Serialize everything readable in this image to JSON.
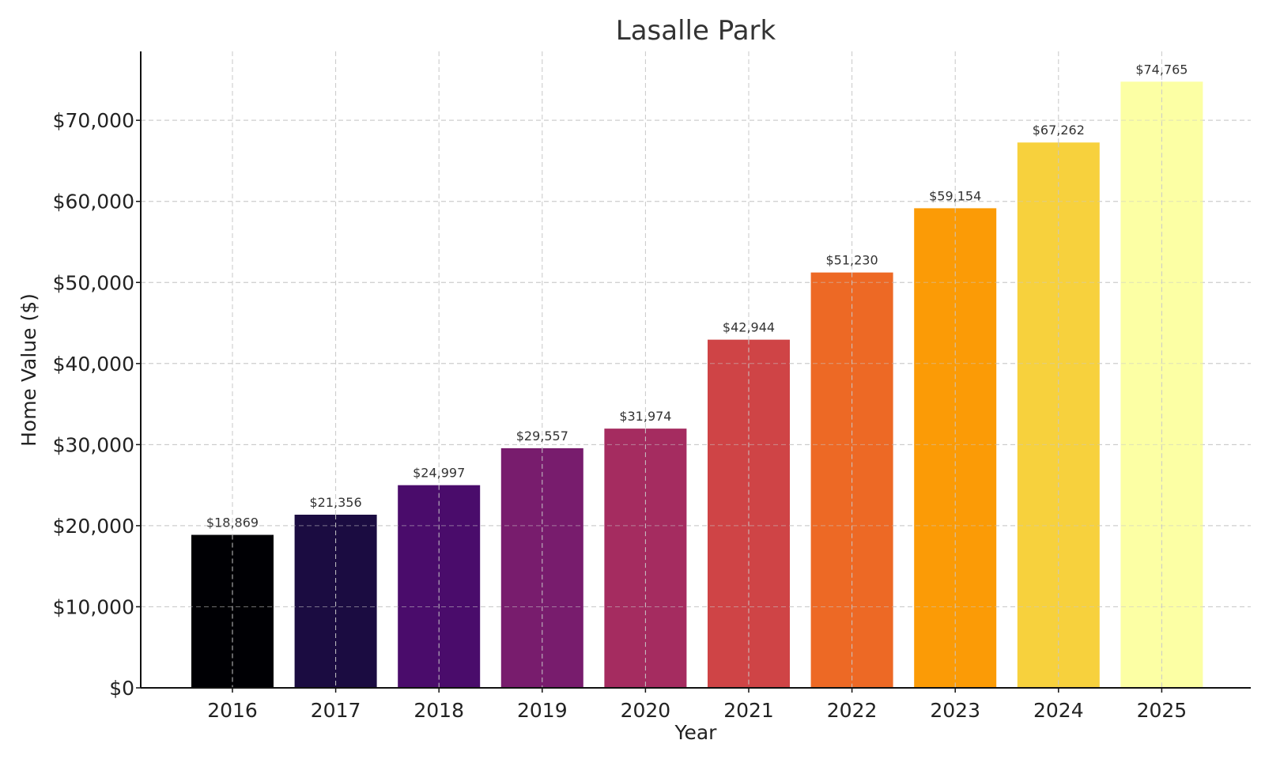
{
  "chart_data": {
    "type": "bar",
    "title": "Lasalle Park",
    "xlabel": "Year",
    "ylabel": "Home Value ($)",
    "categories": [
      "2016",
      "2017",
      "2018",
      "2019",
      "2020",
      "2021",
      "2022",
      "2023",
      "2024",
      "2025"
    ],
    "values": [
      18869,
      21356,
      24997,
      29557,
      31974,
      42944,
      51230,
      59154,
      67262,
      74765
    ],
    "value_labels": [
      "$18,869",
      "$21,356",
      "$24,997",
      "$29,557",
      "$31,974",
      "$42,944",
      "$51,230",
      "$59,154",
      "$67,262",
      "$74,765"
    ],
    "colors": [
      "#000004",
      "#1b0c41",
      "#4a0c6b",
      "#781c6d",
      "#a52c60",
      "#cf4446",
      "#ed6925",
      "#fb9b06",
      "#f7d13d",
      "#fcffa4"
    ],
    "ylim": [
      0,
      78500
    ],
    "yticks": [
      0,
      10000,
      20000,
      30000,
      40000,
      50000,
      60000,
      70000
    ],
    "ytick_labels": [
      "$0",
      "$10,000",
      "$20,000",
      "$30,000",
      "$40,000",
      "$50,000",
      "$60,000",
      "$70,000"
    ],
    "grid": true,
    "legend": "none"
  }
}
